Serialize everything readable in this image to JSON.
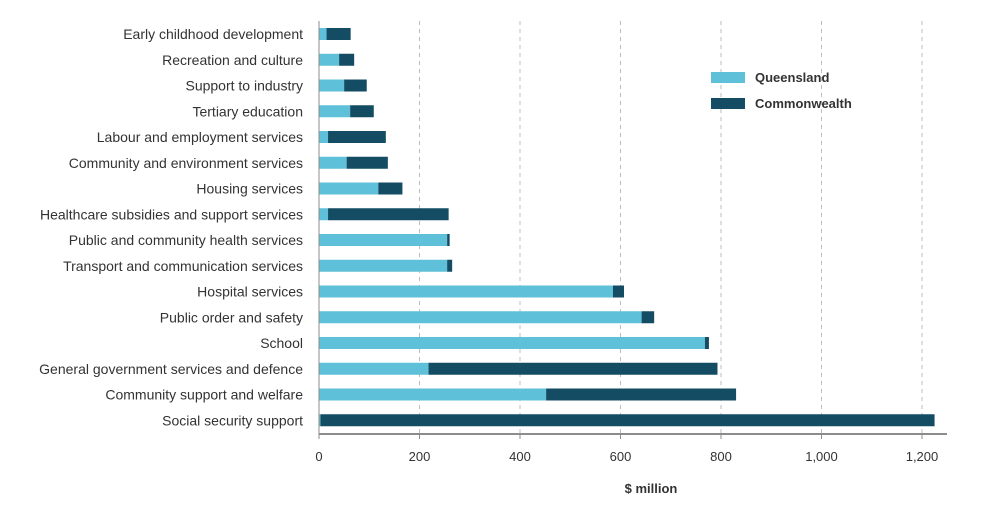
{
  "chart_data": {
    "type": "bar",
    "orientation": "horizontal",
    "stacked": true,
    "title": "",
    "xlabel": "$ million",
    "ylabel": "",
    "xlim": [
      0,
      1250
    ],
    "xticks": [
      0,
      200,
      400,
      600,
      800,
      1000,
      1200
    ],
    "xtick_labels": [
      "0",
      "200",
      "400",
      "600",
      "800",
      "1,000",
      "1,200"
    ],
    "grid": "vertical dashed",
    "legend_position": "top-right",
    "categories": [
      "Early childhood development",
      "Recreation and culture",
      "Support to industry",
      "Tertiary education",
      "Labour and employment services",
      "Community and environment services",
      "Housing services",
      "Healthcare subsidies and support services",
      "Public and community health services",
      "Transport and communication services",
      "Hospital services",
      "Public order and safety",
      "School",
      "General government services and defence",
      "Community support and welfare",
      "Social security support"
    ],
    "series": [
      {
        "name": "Queensland",
        "color": "#5ec1d9",
        "values": [
          15,
          40,
          50,
          62,
          18,
          55,
          118,
          18,
          255,
          255,
          585,
          642,
          768,
          218,
          452,
          3
        ]
      },
      {
        "name": "Commonwealth",
        "color": "#144d63",
        "values": [
          48,
          30,
          45,
          47,
          115,
          82,
          48,
          240,
          5,
          10,
          22,
          25,
          8,
          575,
          378,
          1222
        ]
      }
    ]
  }
}
